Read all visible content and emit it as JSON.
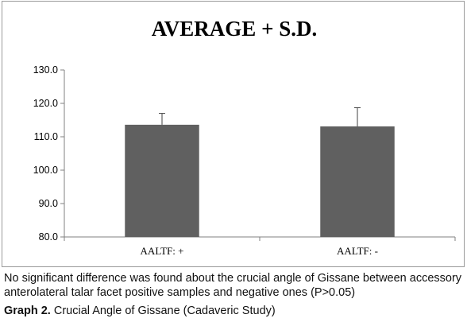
{
  "chart_data": {
    "type": "bar",
    "title": "AVERAGE + S.D.",
    "categories": [
      "AALTF: +",
      "AALTF: -"
    ],
    "values": [
      113.6,
      113.1
    ],
    "error_plus": [
      3.4,
      5.6
    ],
    "ylim": [
      80,
      130
    ],
    "yticks": [
      "80.0",
      "90.0",
      "100.0",
      "110.0",
      "120.0",
      "130.0"
    ],
    "xlabel": "",
    "ylabel": "",
    "grid": false,
    "legend": "none",
    "bar_color": "#606060"
  },
  "caption": {
    "text": "No significant difference was found about the crucial angle of Gissane between accessory anterolateral talar facet positive samples and negative ones (P>0.05)",
    "graph_number": "Graph 2.",
    "graph_title": "Crucial Angle of Gissane (Cadaveric Study)"
  }
}
